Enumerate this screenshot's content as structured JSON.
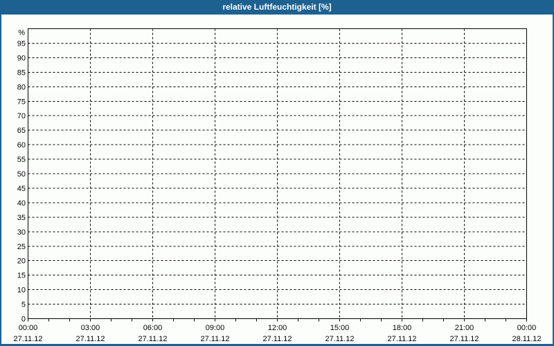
{
  "window": {
    "title": "relative Luftfeuchtigkeit [%]"
  },
  "colors": {
    "titlebar_bg": "#1d6191",
    "titlebar_text": "#ffffff",
    "frame_border": "#1d6191",
    "background": "#fcfefc",
    "axis": "#000000",
    "grid": "#000000",
    "label_text": "#000000"
  },
  "chart_data": {
    "type": "line",
    "title": "relative Luftfeuchtigkeit [%]",
    "ylabel": "%",
    "xlabel": "",
    "ylim": [
      0,
      100
    ],
    "yticks": [
      0,
      5,
      10,
      15,
      20,
      25,
      30,
      35,
      40,
      45,
      50,
      55,
      60,
      65,
      70,
      75,
      80,
      85,
      90,
      95
    ],
    "y_unit_label": "%",
    "grid_style": "dashed",
    "legend": "none",
    "x_major_ticks": [
      {
        "time": "00:00",
        "date": "27.11.12"
      },
      {
        "time": "03:00",
        "date": "27.11.12"
      },
      {
        "time": "06:00",
        "date": "27.11.12"
      },
      {
        "time": "09:00",
        "date": "27.11.12"
      },
      {
        "time": "12:00",
        "date": "27.11.12"
      },
      {
        "time": "15:00",
        "date": "27.11.12"
      },
      {
        "time": "18:00",
        "date": "27.11.12"
      },
      {
        "time": "21:00",
        "date": "27.11.12"
      },
      {
        "time": "00:00",
        "date": "28.11.12"
      }
    ],
    "x_minor_divisions_per_major": 3,
    "series": []
  }
}
